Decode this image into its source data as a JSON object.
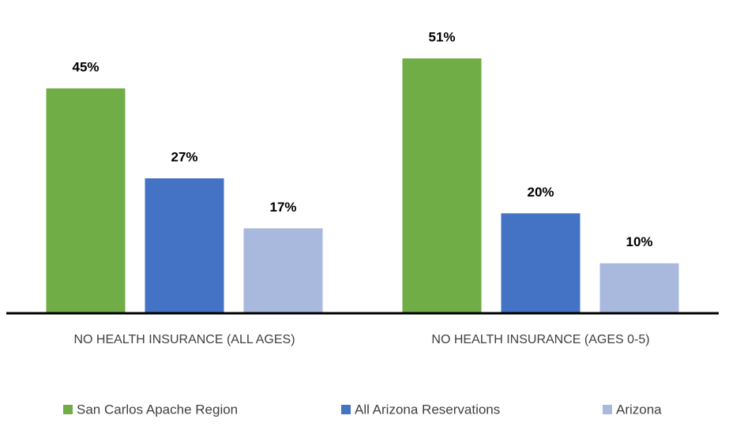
{
  "chart_data": {
    "type": "bar",
    "categories": [
      "NO HEALTH INSURANCE (ALL AGES)",
      "NO HEALTH INSURANCE (AGES 0-5)"
    ],
    "series": [
      {
        "name": "San Carlos Apache Region",
        "color": "#70ad47",
        "values": [
          45,
          51
        ],
        "value_labels": [
          "45%",
          "51%"
        ]
      },
      {
        "name": "All Arizona Reservations",
        "color": "#4472c4",
        "values": [
          27,
          20
        ],
        "value_labels": [
          "27%",
          "20%"
        ]
      },
      {
        "name": "Arizona",
        "color": "#a9b8dd",
        "values": [
          17,
          10
        ],
        "value_labels": [
          "17%",
          "10%"
        ]
      }
    ],
    "ylim": [
      0,
      60
    ],
    "legend": "bottom"
  }
}
